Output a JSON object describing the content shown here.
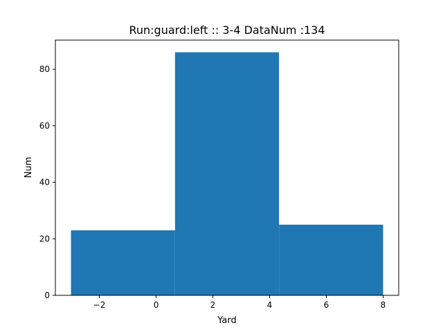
{
  "chart_data": {
    "type": "bar",
    "title": "Run:guard:left :: 3-4    DataNum :134",
    "xlabel": "Yard",
    "ylabel": "Num",
    "bins": [
      {
        "x0": -3.0,
        "x1": 0.667,
        "value": 23
      },
      {
        "x0": 0.667,
        "x1": 4.333,
        "value": 86
      },
      {
        "x0": 4.333,
        "x1": 8.0,
        "value": 25
      }
    ],
    "xlim": [
      -3.55,
      8.55
    ],
    "ylim": [
      0,
      90.3
    ],
    "xticks": [
      -2,
      0,
      2,
      4,
      6,
      8
    ],
    "xtick_labels": [
      "−2",
      "0",
      "2",
      "4",
      "6",
      "8"
    ],
    "yticks": [
      0,
      20,
      40,
      60,
      80
    ],
    "ytick_labels": [
      "0",
      "20",
      "40",
      "60",
      "80"
    ],
    "bar_color": "#1f77b4",
    "grid": false
  }
}
